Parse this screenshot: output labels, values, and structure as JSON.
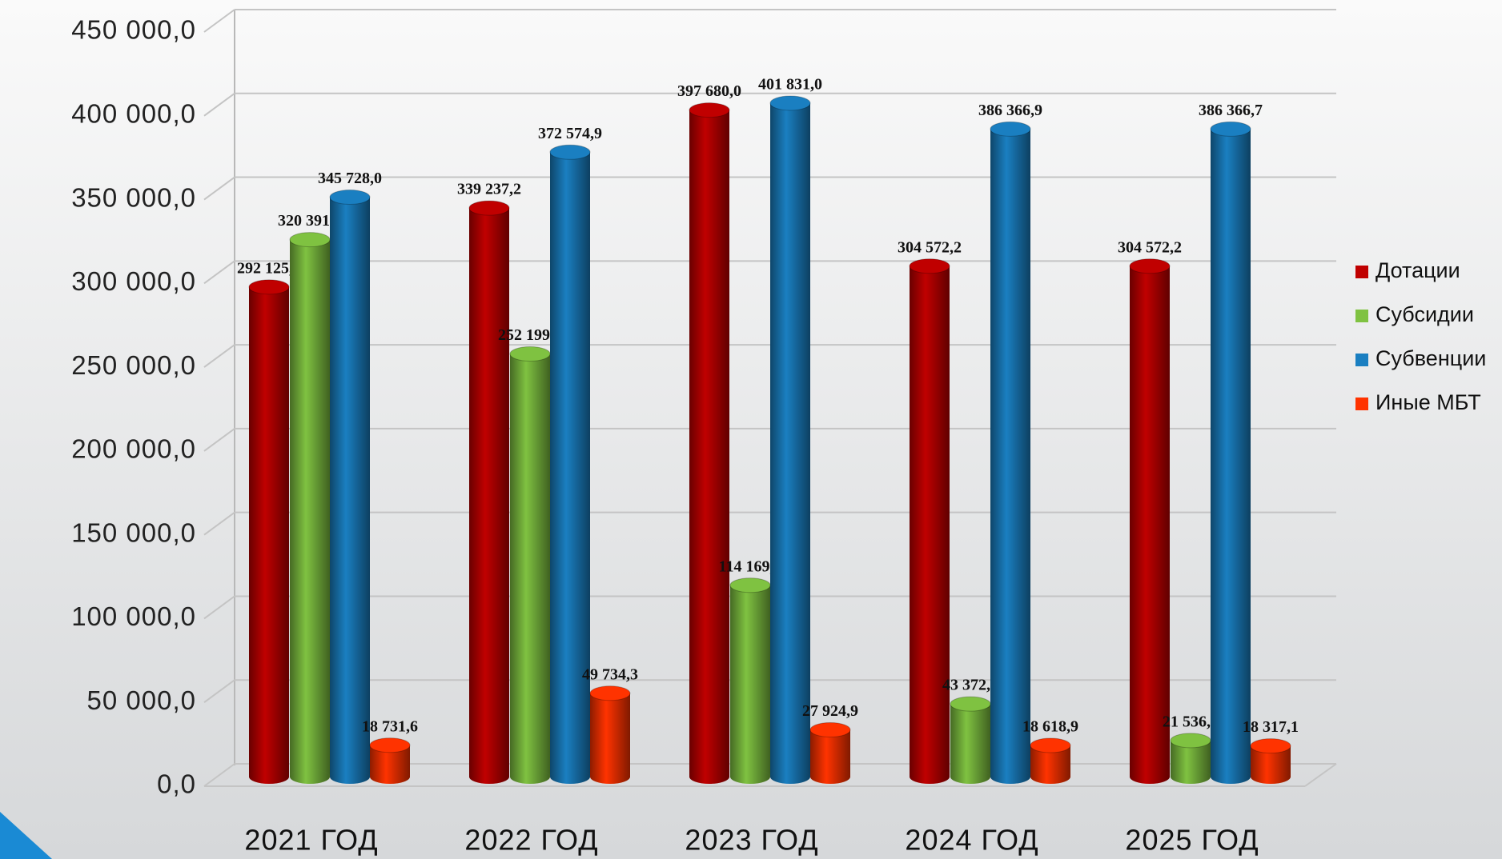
{
  "chart_data": {
    "type": "bar",
    "categories": [
      "2021 ГОД",
      "2022 ГОД",
      "2023 ГОД",
      "2024 ГОД",
      "2025 ГОД"
    ],
    "series": [
      {
        "name": "Дотации",
        "color": "#c00000",
        "values": [
          292125.4,
          339237.2,
          397680.0,
          304572.2,
          304572.2
        ],
        "value_labels": [
          "292 125,4",
          "339 237,2",
          "397 680,0",
          "304 572,2",
          "304 572,2"
        ]
      },
      {
        "name": "Субсидии",
        "color": "#7fc241",
        "values": [
          320391.8,
          252199.8,
          114169.7,
          43372.0,
          21536.4
        ],
        "value_labels": [
          "320 391,8",
          "252 199,8",
          "114 169,7",
          "43 372,0",
          "21 536,4"
        ]
      },
      {
        "name": "Субвенции",
        "color": "#1a7fc1",
        "values": [
          345728.0,
          372574.9,
          401831.0,
          386366.9,
          386366.7
        ],
        "value_labels": [
          "345 728,0",
          "372 574,9",
          "401 831,0",
          "386 366,9",
          "386 366,7"
        ]
      },
      {
        "name": "Иные МБТ",
        "color": "#ff3300",
        "values": [
          18731.6,
          49734.3,
          27924.9,
          18618.9,
          18317.1
        ],
        "value_labels": [
          "18 731,6",
          "49 734,3",
          "27 924,9",
          "18 618,9",
          "18 317,1"
        ]
      }
    ],
    "ylim": [
      0,
      450000
    ],
    "yticks": [
      {
        "value": 0,
        "label": "0,0"
      },
      {
        "value": 50000,
        "label": "50 000,0"
      },
      {
        "value": 100000,
        "label": "100 000,0"
      },
      {
        "value": 150000,
        "label": "150 000,0"
      },
      {
        "value": 200000,
        "label": "200 000,0"
      },
      {
        "value": 250000,
        "label": "250 000,0"
      },
      {
        "value": 300000,
        "label": "300 000,0"
      },
      {
        "value": 350000,
        "label": "350 000,0"
      },
      {
        "value": 400000,
        "label": "400 000,0"
      },
      {
        "value": 450000,
        "label": "450 000,0"
      }
    ],
    "grid": true,
    "legend": "right"
  }
}
